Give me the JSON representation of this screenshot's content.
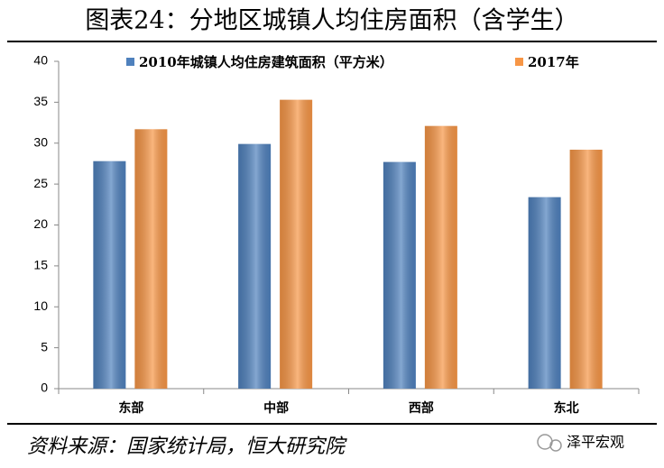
{
  "chart_data": {
    "type": "bar",
    "title": "图表24：分地区城镇人均住房面积（含学生）",
    "categories": [
      "东部",
      "中部",
      "西部",
      "东北"
    ],
    "series": [
      {
        "name": "2010年城镇人均住房建筑面积（平方米）",
        "color": "#4f81bd",
        "values": [
          27.8,
          29.9,
          27.7,
          23.4
        ]
      },
      {
        "name": "2017年",
        "color": "#f79646",
        "values": [
          31.7,
          35.3,
          32.1,
          29.2
        ]
      }
    ],
    "ylim": [
      0,
      40
    ],
    "yticks": [
      0,
      5,
      10,
      15,
      20,
      25,
      30,
      35,
      40
    ],
    "grid": false,
    "legend": "top"
  },
  "source": "资料来源：国家统计局，恒大研究院",
  "watermark": "泽平宏观"
}
